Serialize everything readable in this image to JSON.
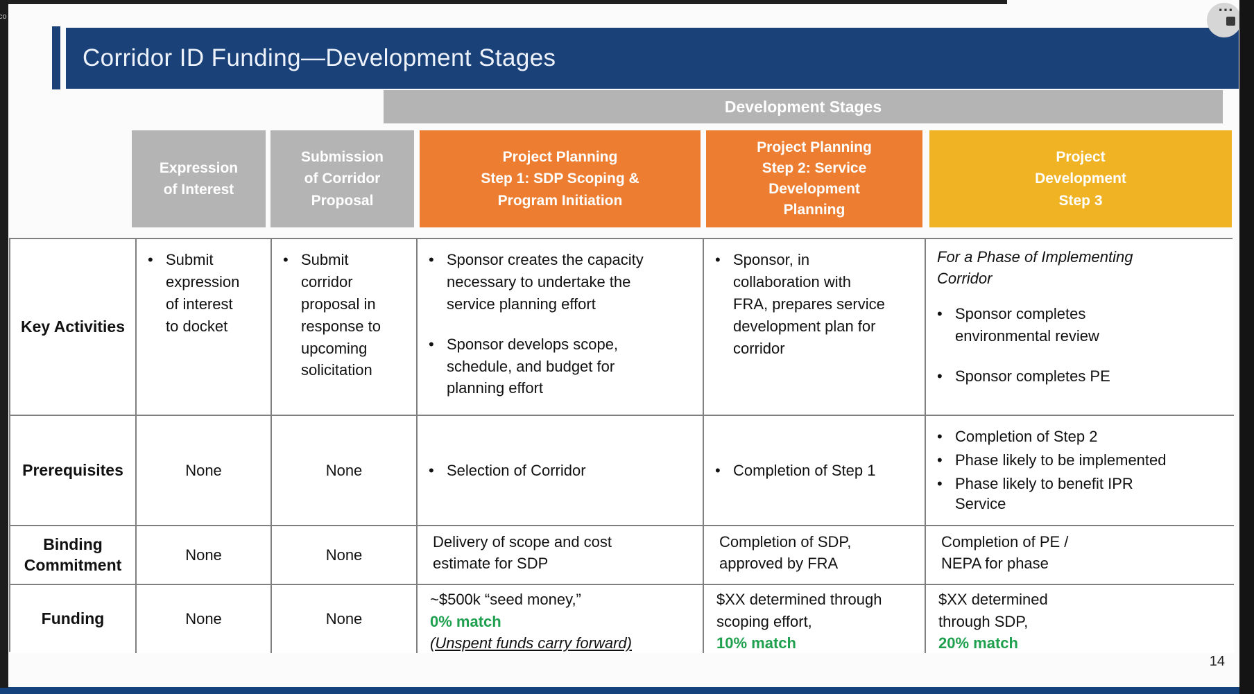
{
  "slide": {
    "title": "Corridor ID Funding—Development Stages",
    "banner": "Development Stages",
    "page_number": "14"
  },
  "chrome": {
    "left_edge_text": "co",
    "webinar_control_icon": "⋯"
  },
  "colors": {
    "navy": "#1B4179",
    "gray": "#B4B4B4",
    "orange": "#ED7D31",
    "gold": "#F0B323",
    "green": "#1FA04E"
  },
  "headers": [
    {
      "lines": [
        "Expression",
        "of Interest"
      ]
    },
    {
      "lines": [
        "Submission",
        "of Corridor",
        "Proposal"
      ]
    },
    {
      "lines": [
        "Project Planning",
        "Step 1: SDP Scoping &",
        "Program Initiation"
      ]
    },
    {
      "lines": [
        "Project Planning",
        "Step 2: Service",
        "Development",
        "Planning"
      ]
    },
    {
      "lines": [
        "Project",
        "Development",
        "Step 3"
      ]
    }
  ],
  "rows": {
    "key_activities": {
      "label": "Key Activities",
      "eoi": [
        "Submit expression of interest to docket"
      ],
      "proposal": [
        "Submit corridor proposal in response to upcoming solicitation"
      ],
      "step1": [
        "Sponsor creates the capacity necessary to undertake the service planning effort",
        "Sponsor develops scope, schedule, and budget for planning effort"
      ],
      "step2": [
        "Sponsor, in collaboration with FRA, prepares service development plan for corridor"
      ],
      "step3_intro": "For a Phase of Implementing Corridor",
      "step3": [
        "Sponsor completes environmental review",
        "Sponsor completes PE"
      ]
    },
    "prerequisites": {
      "label": "Prerequisites",
      "eoi": "None",
      "proposal": "None",
      "step1": [
        "Selection of Corridor"
      ],
      "step2": [
        "Completion of Step 1"
      ],
      "step3": [
        "Completion of Step 2",
        "Phase likely to be implemented",
        "Phase likely to benefit IPR Service"
      ]
    },
    "binding_commitment": {
      "label_lines": [
        "Binding",
        "Commitment"
      ],
      "eoi": "None",
      "proposal": "None",
      "step1_lines": [
        "Delivery of scope and cost",
        "estimate for SDP"
      ],
      "step2_lines": [
        "Completion of SDP,",
        "approved by FRA"
      ],
      "step3_lines": [
        "Completion of PE /",
        "NEPA for phase"
      ]
    },
    "funding": {
      "label": "Funding",
      "eoi": "None",
      "proposal": "None",
      "step1": {
        "amount": "~$500k “seed money,”",
        "match": "0% match",
        "note": "(Unspent funds carry forward)"
      },
      "step2": {
        "amount_lines": [
          "$XX determined through",
          "scoping effort,"
        ],
        "match": "10% match"
      },
      "step3": {
        "amount_lines": [
          "$XX determined",
          "through SDP,"
        ],
        "match": "20% match"
      }
    }
  }
}
